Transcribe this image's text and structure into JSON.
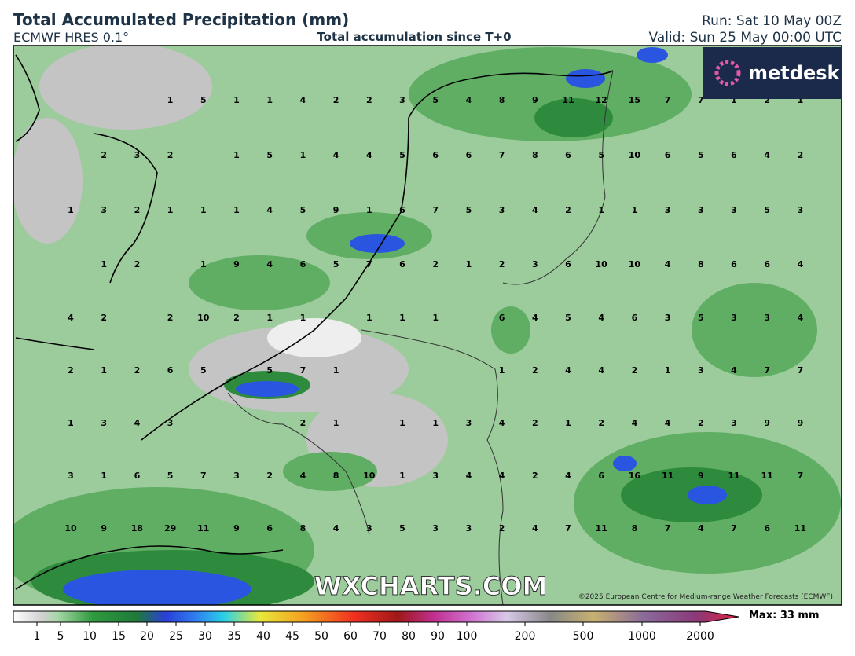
{
  "header": {
    "title": "Total Accumulated Precipitation (mm)",
    "model": "ECMWF HRES 0.1°",
    "subtitle": "Total accumulation since T+0",
    "run": "Run: Sat 10 May 00Z",
    "valid": "Valid: Sun 25 May 00:00 UTC"
  },
  "logo": "metdesk",
  "watermark": "WXCHARTS.COM",
  "copyright": "©2025 European Centre for Medium-range Weather Forecasts (ECMWF)",
  "grid_values": [
    [
      null,
      null,
      null,
      1,
      5,
      1,
      1,
      4,
      2,
      2,
      3,
      5,
      4,
      8,
      9,
      11,
      12,
      15,
      7,
      7,
      1,
      2,
      1
    ],
    [
      null,
      2,
      3,
      2,
      null,
      1,
      5,
      1,
      4,
      4,
      5,
      6,
      6,
      7,
      8,
      6,
      5,
      10,
      6,
      5,
      6,
      4,
      2
    ],
    [
      1,
      3,
      2,
      1,
      1,
      1,
      4,
      5,
      9,
      1,
      6,
      7,
      5,
      3,
      4,
      2,
      1,
      1,
      3,
      3,
      3,
      5,
      3
    ],
    [
      null,
      1,
      2,
      null,
      1,
      9,
      4,
      6,
      5,
      7,
      6,
      2,
      1,
      2,
      3,
      6,
      10,
      10,
      4,
      8,
      6,
      6,
      4
    ],
    [
      4,
      2,
      null,
      2,
      10,
      2,
      1,
      1,
      null,
      1,
      1,
      1,
      null,
      6,
      4,
      5,
      4,
      6,
      3,
      5,
      3,
      3,
      4
    ],
    [
      2,
      1,
      2,
      6,
      5,
      null,
      5,
      7,
      1,
      null,
      null,
      null,
      null,
      1,
      2,
      4,
      4,
      2,
      1,
      3,
      4,
      7,
      7
    ],
    [
      1,
      3,
      4,
      3,
      null,
      null,
      null,
      2,
      1,
      null,
      1,
      1,
      3,
      4,
      2,
      1,
      2,
      4,
      4,
      2,
      3,
      9,
      9
    ],
    [
      3,
      1,
      6,
      5,
      7,
      3,
      2,
      4,
      8,
      10,
      1,
      3,
      4,
      4,
      2,
      4,
      6,
      16,
      11,
      9,
      11,
      11,
      7
    ],
    [
      10,
      9,
      18,
      29,
      11,
      9,
      6,
      8,
      4,
      3,
      5,
      3,
      3,
      2,
      4,
      7,
      11,
      8,
      7,
      4,
      7,
      6,
      11
    ]
  ],
  "colorbar": {
    "labels": [
      1,
      5,
      10,
      15,
      20,
      25,
      30,
      35,
      40,
      45,
      50,
      60,
      70,
      80,
      90,
      100,
      200,
      500,
      1000,
      2000
    ],
    "max_label": "Max: 33 mm"
  }
}
